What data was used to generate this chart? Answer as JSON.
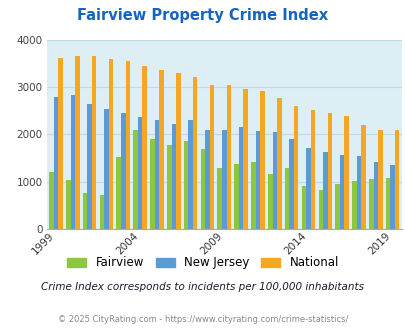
{
  "title": "Fairview Property Crime Index",
  "title_color": "#1565c0",
  "subtitle": "Crime Index corresponds to incidents per 100,000 inhabitants",
  "footer": "© 2025 CityRating.com - https://www.cityrating.com/crime-statistics/",
  "years": [
    1999,
    2000,
    2001,
    2002,
    2003,
    2004,
    2005,
    2006,
    2007,
    2008,
    2009,
    2010,
    2011,
    2012,
    2013,
    2014,
    2015,
    2016,
    2017,
    2018,
    2019
  ],
  "fairview": [
    1200,
    1050,
    760,
    730,
    1520,
    2100,
    1900,
    1780,
    1870,
    1700,
    1300,
    1380,
    1430,
    1160,
    1300,
    920,
    840,
    950,
    1010,
    1060,
    1080
  ],
  "new_jersey": [
    2780,
    2840,
    2650,
    2540,
    2460,
    2360,
    2300,
    2220,
    2310,
    2090,
    2090,
    2160,
    2070,
    2060,
    1900,
    1720,
    1640,
    1560,
    1550,
    1430,
    1360
  ],
  "national": [
    3620,
    3660,
    3650,
    3600,
    3540,
    3450,
    3360,
    3300,
    3220,
    3040,
    3050,
    2950,
    2920,
    2760,
    2600,
    2510,
    2450,
    2390,
    2200,
    2100,
    2100
  ],
  "fairview_color": "#8dc63f",
  "nj_color": "#5b9bd5",
  "national_color": "#f5a623",
  "bg_color": "#deeef5",
  "grid_color": "#c0d8e8",
  "ylim": [
    0,
    4000
  ],
  "yticks": [
    0,
    1000,
    2000,
    3000,
    4000
  ],
  "xlabel_years": [
    1999,
    2004,
    2009,
    2014,
    2019
  ],
  "bar_width": 0.27,
  "figsize": [
    4.06,
    3.3
  ],
  "dpi": 100
}
